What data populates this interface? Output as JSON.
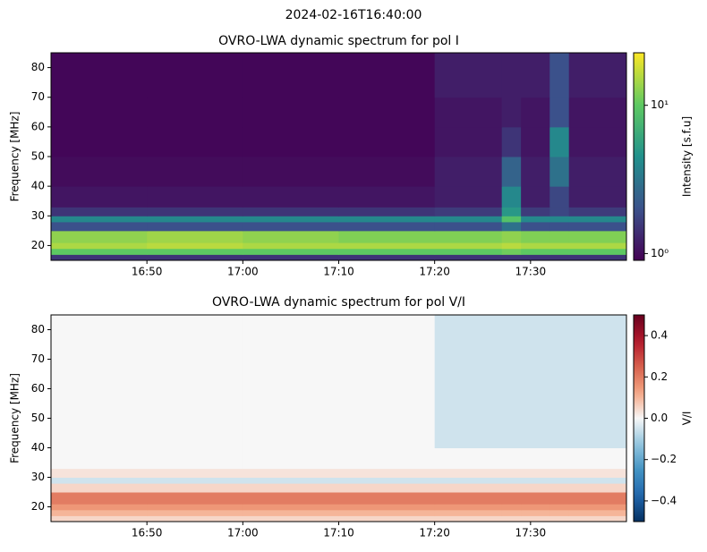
{
  "suptitle": "2024-02-16T16:40:00",
  "chart_data": [
    {
      "type": "heatmap",
      "title": "OVRO-LWA dynamic spectrum for pol I",
      "y_label": "Frequency [MHz]",
      "xlim": [
        "16:40",
        "17:40"
      ],
      "xticks": [
        "16:50",
        "17:00",
        "17:10",
        "17:20",
        "17:30"
      ],
      "ylim": [
        15,
        85
      ],
      "yticks": [
        20,
        30,
        40,
        50,
        60,
        70,
        80
      ],
      "x_edges": [
        "16:40",
        "16:50",
        "17:00",
        "17:10",
        "17:20",
        "17:27",
        "17:29",
        "17:32",
        "17:34",
        "17:40"
      ],
      "y_edges": [
        15,
        17,
        19,
        21,
        25,
        28,
        30,
        33,
        40,
        50,
        60,
        70,
        85
      ],
      "z": [
        [
          1.5,
          1.5,
          1.5,
          1.5,
          1.5,
          1.5,
          1.5,
          1.5,
          1.5
        ],
        [
          10,
          10,
          10,
          10,
          10,
          11,
          10,
          10,
          10
        ],
        [
          15,
          16,
          15,
          15,
          15,
          16,
          15,
          15,
          15
        ],
        [
          13,
          14,
          13,
          12,
          12,
          13,
          12,
          12,
          12
        ],
        [
          2,
          2,
          2,
          2,
          2,
          3,
          2,
          2,
          2
        ],
        [
          4,
          4,
          4,
          4,
          4,
          9,
          4,
          4,
          4
        ],
        [
          1.5,
          1.5,
          1.5,
          1.5,
          1.6,
          5,
          1.6,
          1.8,
          1.6
        ],
        [
          1.1,
          1.1,
          1.1,
          1.1,
          1.2,
          4,
          1.2,
          1.8,
          1.2
        ],
        [
          1,
          1,
          1,
          1,
          1.2,
          2.5,
          1.2,
          3,
          1.2
        ],
        [
          0.95,
          0.95,
          0.95,
          0.95,
          1.1,
          1.5,
          1.1,
          4,
          1.1
        ],
        [
          0.95,
          0.95,
          0.95,
          0.95,
          1.1,
          1.2,
          1.1,
          2,
          1.1
        ],
        [
          0.95,
          0.95,
          0.95,
          0.95,
          1.2,
          1.2,
          1.2,
          2,
          1.2
        ]
      ],
      "colormap": "viridis",
      "color_scale": "log",
      "clim": [
        0.9,
        22.6
      ],
      "colorbar_label": "Intensity [s.f.u]",
      "colorbar_ticks": [
        {
          "value": 1,
          "label": "10⁰"
        },
        {
          "value": 10,
          "label": "10¹"
        }
      ]
    },
    {
      "type": "heatmap",
      "title": "OVRO-LWA dynamic spectrum for pol V/I",
      "y_label": "Frequency [MHz]",
      "xlim": [
        "16:40",
        "17:40"
      ],
      "xticks": [
        "16:50",
        "17:00",
        "17:10",
        "17:20",
        "17:30"
      ],
      "ylim": [
        15,
        85
      ],
      "yticks": [
        20,
        30,
        40,
        50,
        60,
        70,
        80
      ],
      "x_edges": [
        "16:40",
        "16:50",
        "17:00",
        "17:10",
        "17:20",
        "17:27",
        "17:29",
        "17:32",
        "17:34",
        "17:40"
      ],
      "y_edges": [
        15,
        17,
        19,
        21,
        25,
        28,
        30,
        33,
        40,
        50,
        60,
        70,
        85
      ],
      "z": [
        [
          0.05,
          0.05,
          0.05,
          0.05,
          0.05,
          0.05,
          0.05,
          0.05,
          0.05
        ],
        [
          0.1,
          0.1,
          0.1,
          0.1,
          0.1,
          0.1,
          0.1,
          0.1,
          0.1
        ],
        [
          0.15,
          0.15,
          0.15,
          0.15,
          0.15,
          0.15,
          0.15,
          0.15,
          0.15
        ],
        [
          0.2,
          0.2,
          0.2,
          0.2,
          0.2,
          0.2,
          0.2,
          0.2,
          0.2
        ],
        [
          0.05,
          0.05,
          0.05,
          0.05,
          0.05,
          0.05,
          0.05,
          0.05,
          0.05
        ],
        [
          -0.05,
          -0.05,
          -0.05,
          -0.05,
          -0.05,
          -0.05,
          -0.05,
          -0.05,
          -0.05
        ],
        [
          0.03,
          0.03,
          0.03,
          0.03,
          0.03,
          0.03,
          0.03,
          0.03,
          0.03
        ],
        [
          0,
          0,
          0,
          0,
          0,
          0,
          0,
          0,
          0
        ],
        [
          0,
          0,
          0,
          0,
          -0.05,
          -0.05,
          -0.05,
          -0.05,
          -0.05
        ],
        [
          0,
          0,
          0,
          0,
          -0.05,
          -0.05,
          -0.05,
          -0.05,
          -0.05
        ],
        [
          0,
          0,
          0,
          0,
          -0.05,
          -0.05,
          -0.05,
          -0.05,
          -0.05
        ],
        [
          0,
          0,
          0,
          0,
          -0.05,
          -0.05,
          -0.05,
          -0.05,
          -0.05
        ]
      ],
      "colormap": "RdBu_r",
      "color_scale": "linear",
      "clim": [
        -0.5,
        0.5
      ],
      "colorbar_label": "V/I",
      "colorbar_ticks": [
        0.4,
        0.2,
        {
          "value": 0,
          "label": "0.0"
        },
        {
          "value": -0.2,
          "label": "−0.2"
        },
        {
          "value": -0.4,
          "label": "−0.4"
        }
      ]
    }
  ]
}
